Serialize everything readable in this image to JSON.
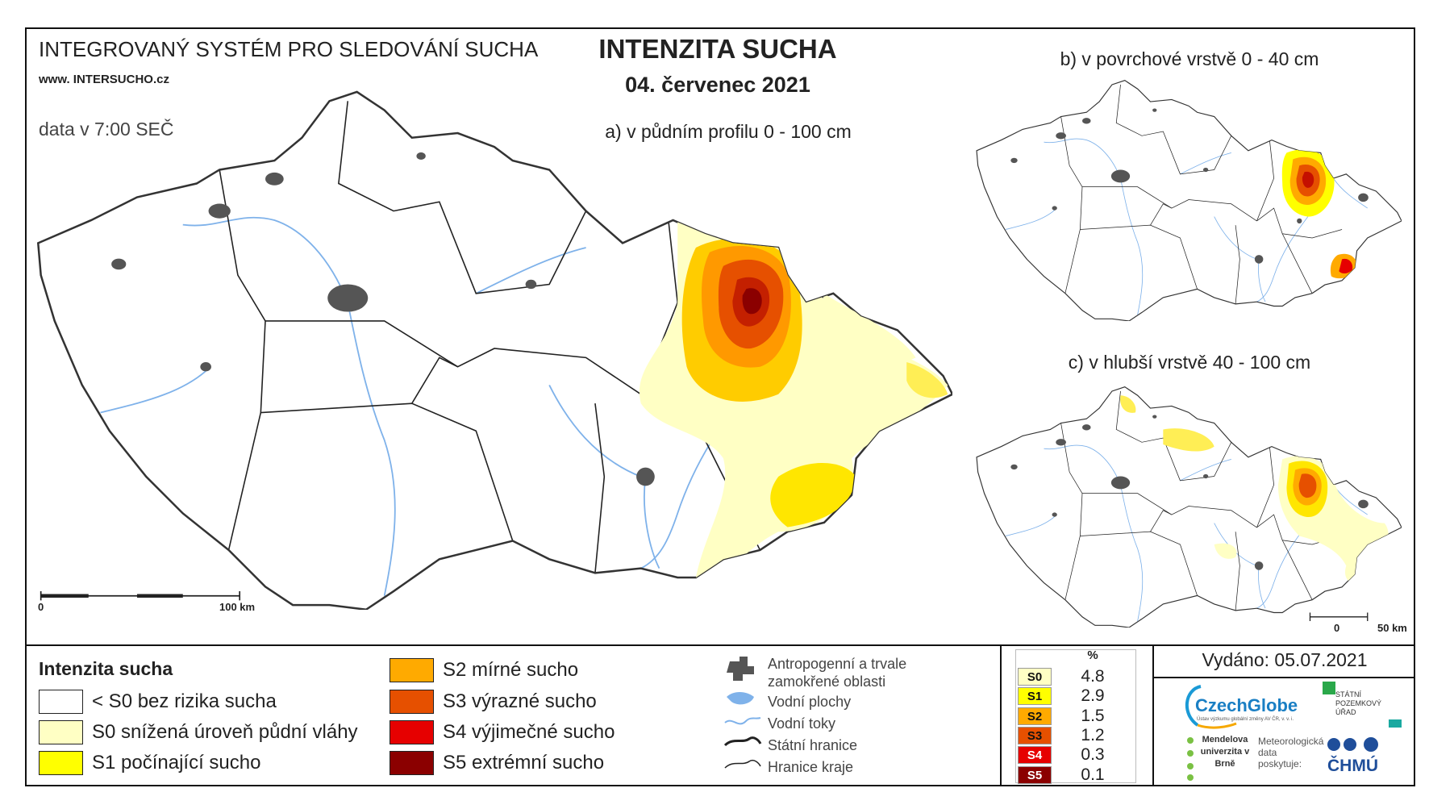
{
  "header": {
    "system_title": "INTEGROVANÝ SYSTÉM PRO SLEDOVÁNÍ SUCHA",
    "website": "www. INTERSUCHO.cz",
    "data_time": "data v 7:00 SEČ",
    "title": "INTENZITA SUCHA",
    "date": "04. červenec 2021"
  },
  "maps": [
    {
      "caption": "a) v půdním profilu 0 - 100 cm",
      "scale": [
        "0",
        "100 km"
      ]
    },
    {
      "caption": "b) v povrchové vrstvě 0 - 40 cm"
    },
    {
      "caption": "c) v hlubší vrstvě 40 - 100 cm",
      "scale": [
        "0",
        "50 km"
      ]
    }
  ],
  "legend": {
    "title": "Intenzita sucha",
    "classes": [
      {
        "label": "< S0 bez rizika sucha",
        "color": "#ffffff"
      },
      {
        "label": "S0 snížená úroveň půdní vláhy",
        "color": "#ffffc4"
      },
      {
        "label": "S1 počínající sucho",
        "color": "#ffff00"
      },
      {
        "label": "S2 mírné sucho",
        "color": "#ffaa00"
      },
      {
        "label": "S3 výrazné sucho",
        "color": "#e65000"
      },
      {
        "label": "S4 výjimečné sucho",
        "color": "#e60000"
      },
      {
        "label": "S5 extrémní sucho",
        "color": "#8b0000"
      }
    ]
  },
  "layers": [
    "Antropogenní a trvale zamokřené oblasti",
    "Vodní plochy",
    "Vodní toky",
    "Státní hranice",
    "Hranice kraje"
  ],
  "stats": {
    "header": "%",
    "rows": [
      {
        "class": "S0",
        "percent": 4.8
      },
      {
        "class": "S1",
        "percent": 2.9
      },
      {
        "class": "S2",
        "percent": 1.5
      },
      {
        "class": "S3",
        "percent": 1.2
      },
      {
        "class": "S4",
        "percent": 0.3
      },
      {
        "class": "S5",
        "percent": 0.1
      }
    ]
  },
  "issued": "Vydáno: 05.07.2021",
  "logos": {
    "czechglobe": "CzechGlobe",
    "czechglobe_sub": "Ústav výzkumu globální změny AV ČR, v. v. i.",
    "spu": "STÁTNÍ POZEMKOVÝ ÚŘAD",
    "mendelu": "Mendelova univerzita v Brně",
    "chmu_note": "Meteorologická data poskytuje:",
    "chmu": "ČHMÚ"
  }
}
